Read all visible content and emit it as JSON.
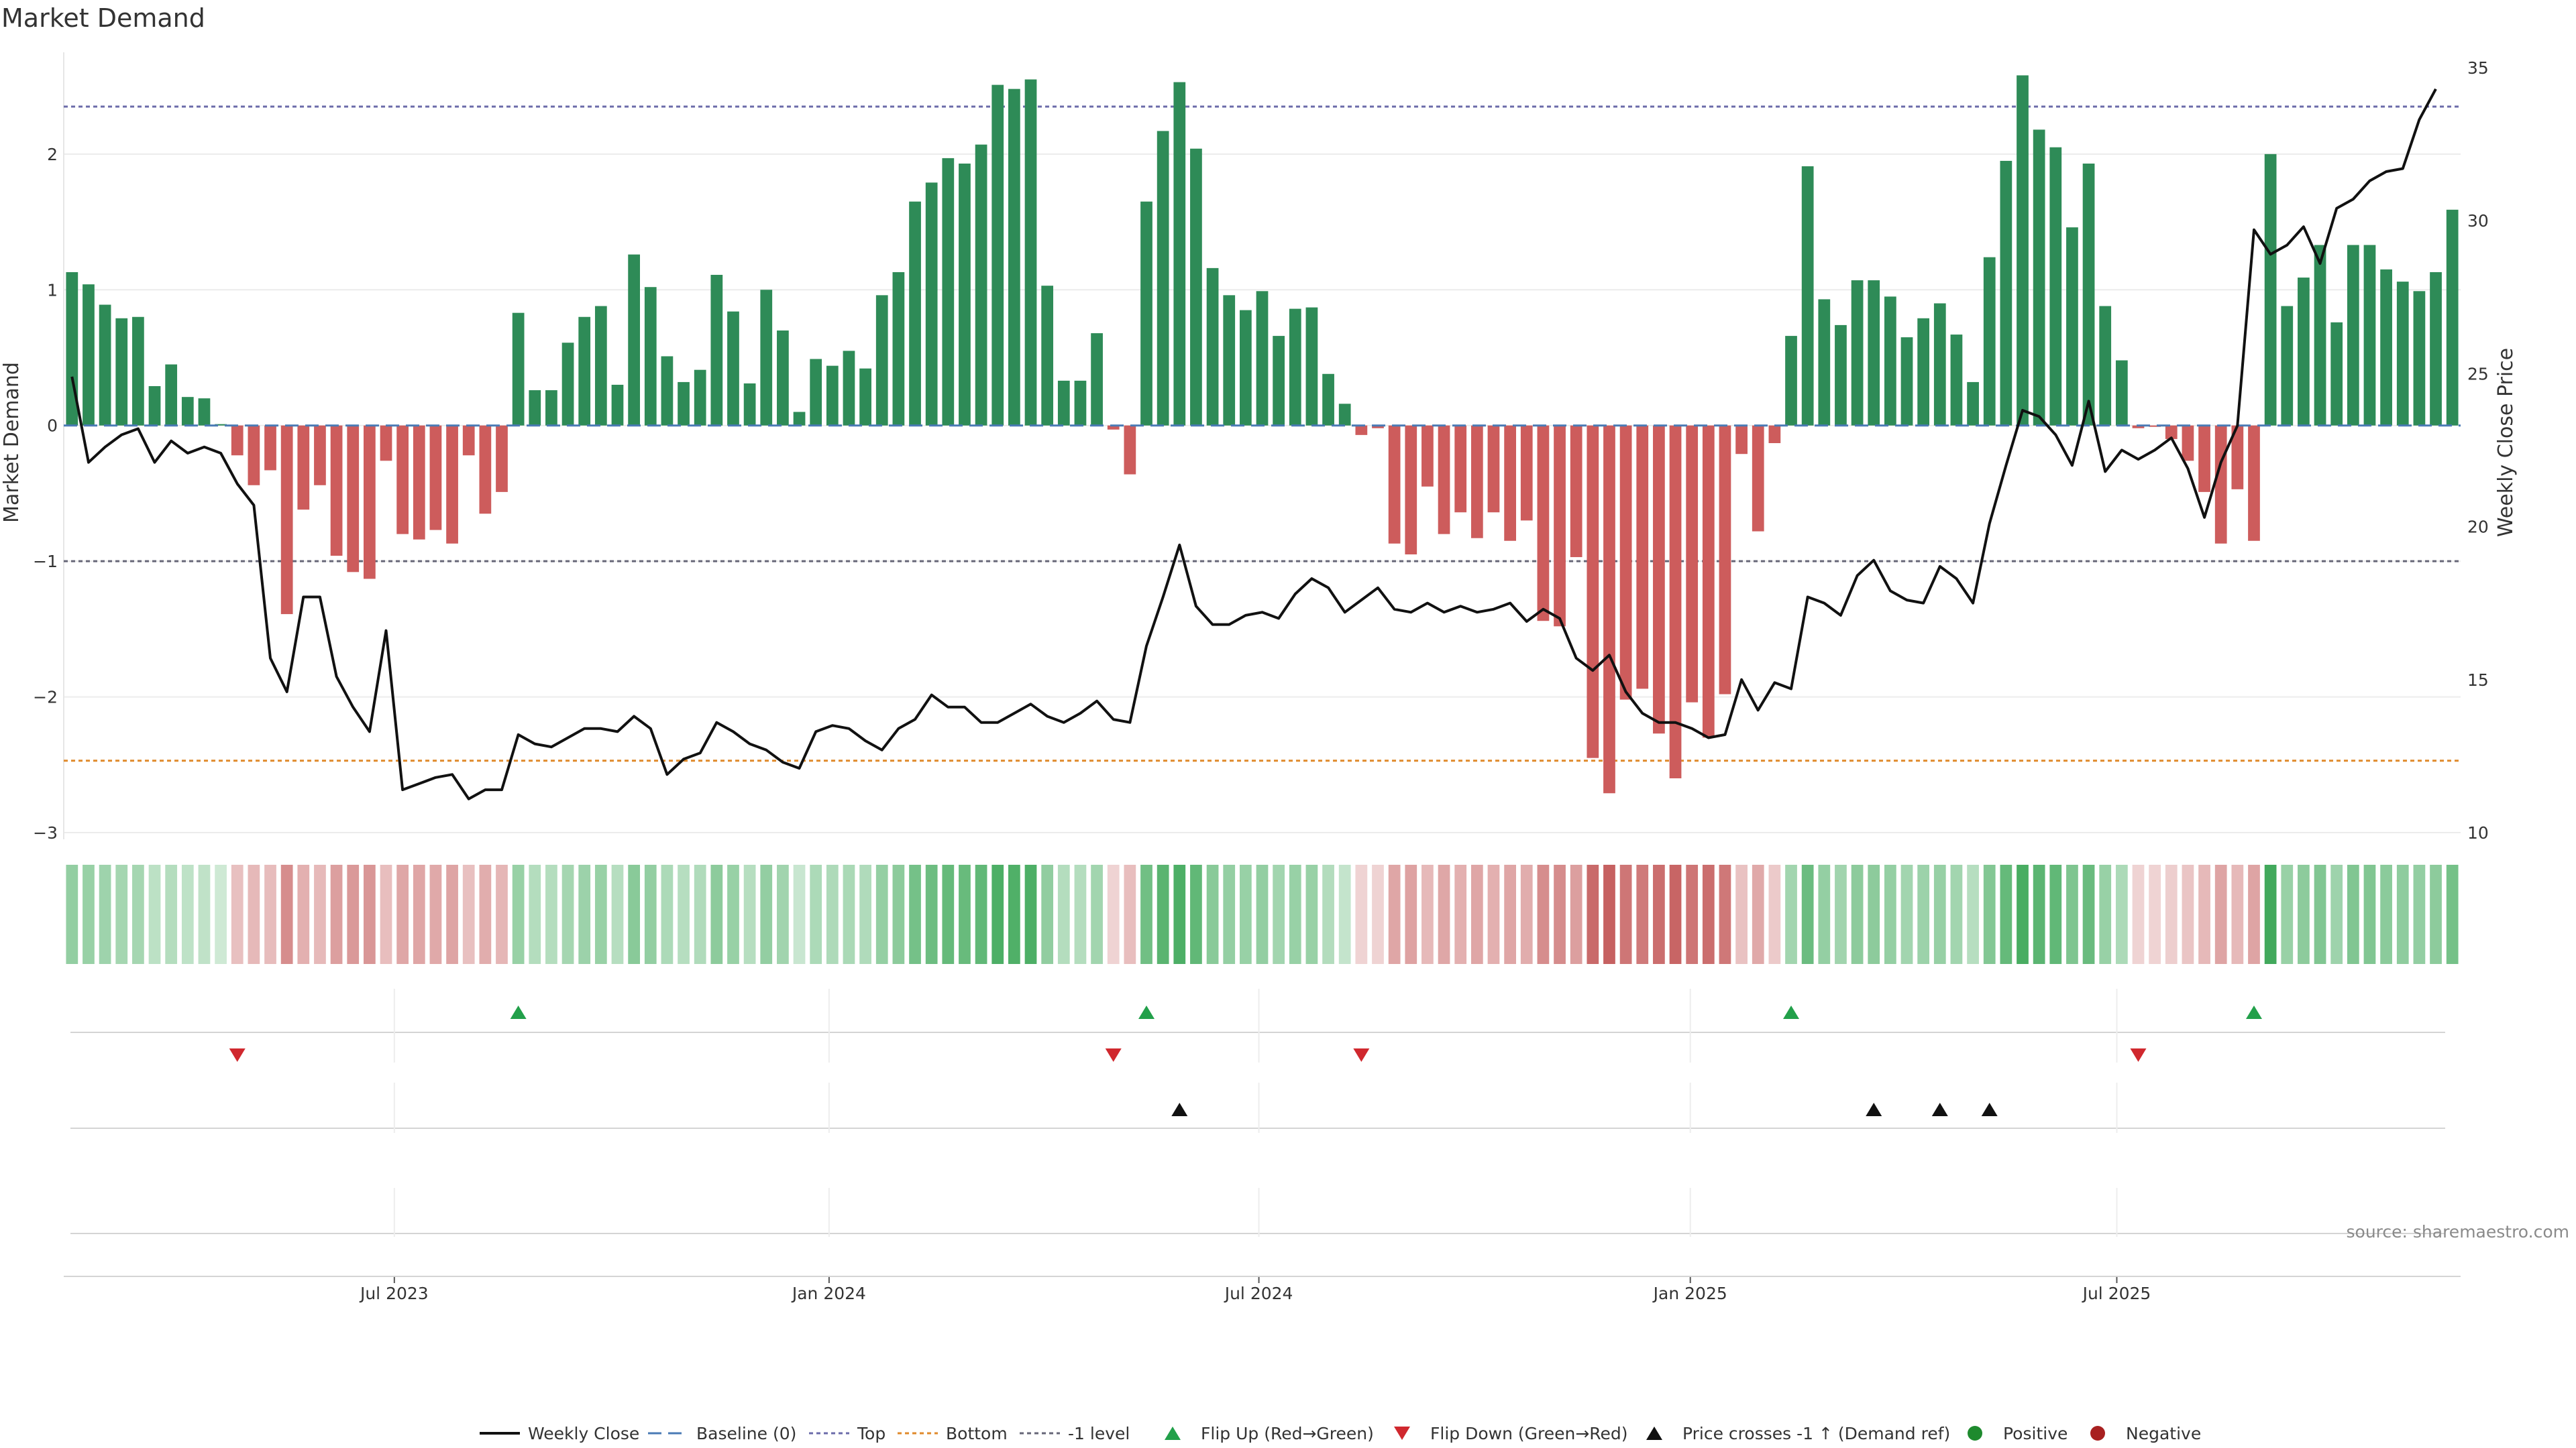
{
  "chart_data": {
    "type": "bar+line",
    "title": "Market Demand",
    "ylabel": "Market Demand",
    "y2label": "Weekly Close Price",
    "ylim": [
      -3,
      2.75
    ],
    "y2lim": [
      10,
      35.5
    ],
    "yticks": [
      2,
      1,
      0,
      -1,
      -2,
      -3
    ],
    "ytick_labels": [
      "2",
      "1",
      "0",
      "−1",
      "−2",
      "−3"
    ],
    "y2ticks": [
      35,
      30,
      25,
      20,
      15,
      10
    ],
    "y2tick_labels": [
      "35",
      "30",
      "25",
      "20",
      "15",
      "10"
    ],
    "x_ticks": [
      {
        "label": "Jul 2023",
        "index": 20
      },
      {
        "label": "Jan 2024",
        "index": 46.3
      },
      {
        "label": "Jul 2024",
        "index": 72.3
      },
      {
        "label": "Jan 2025",
        "index": 98.4
      },
      {
        "label": "Jul 2025",
        "index": 124.2
      }
    ],
    "reference_lines": {
      "top": 2.35,
      "bottom": -2.47,
      "minus_one": -1,
      "baseline": 0
    },
    "demand": [
      1.13,
      1.04,
      0.89,
      0.79,
      0.8,
      0.29,
      0.45,
      0.21,
      0.2,
      0.01,
      -0.22,
      -0.44,
      -0.33,
      -1.39,
      -0.62,
      -0.44,
      -0.96,
      -1.08,
      -1.13,
      -0.26,
      -0.8,
      -0.84,
      -0.77,
      -0.87,
      -0.22,
      -0.65,
      -0.49,
      0.83,
      0.26,
      0.26,
      0.61,
      0.8,
      0.88,
      0.3,
      1.26,
      1.02,
      0.51,
      0.32,
      0.41,
      1.11,
      0.84,
      0.31,
      1.0,
      0.7,
      0.1,
      0.49,
      0.44,
      0.55,
      0.42,
      0.96,
      1.13,
      1.65,
      1.79,
      1.97,
      1.93,
      2.07,
      2.51,
      2.48,
      2.55,
      1.03,
      0.33,
      0.33,
      0.68,
      -0.03,
      -0.36,
      1.65,
      2.17,
      2.53,
      2.04,
      1.16,
      0.96,
      0.85,
      0.99,
      0.66,
      0.86,
      0.87,
      0.38,
      0.16,
      -0.07,
      -0.02,
      -0.87,
      -0.95,
      -0.45,
      -0.8,
      -0.64,
      -0.83,
      -0.64,
      -0.85,
      -0.7,
      -1.44,
      -1.48,
      -0.97,
      -2.45,
      -2.71,
      -2.02,
      -1.94,
      -2.27,
      -2.6,
      -2.04,
      -2.3,
      -1.98,
      -0.21,
      -0.78,
      -0.13,
      0.66,
      1.91,
      0.93,
      0.74,
      1.07,
      1.07,
      0.95,
      0.65,
      0.79,
      0.9,
      0.67,
      0.32,
      1.24,
      1.95,
      2.58,
      2.18,
      2.05,
      1.46,
      1.93,
      0.88,
      0.48,
      -0.02,
      -0.01,
      -0.1,
      -0.26,
      -0.49,
      -0.87,
      -0.47,
      -0.85,
      2.0,
      0.88,
      1.09,
      1.33,
      0.76,
      1.33,
      1.33,
      1.15,
      1.06,
      0.99,
      1.13,
      1.59
    ],
    "price": [
      24.9,
      22.1,
      22.6,
      23.0,
      23.2,
      22.1,
      22.8,
      22.4,
      22.6,
      22.4,
      21.4,
      20.7,
      15.7,
      14.6,
      17.7,
      17.7,
      15.1,
      14.1,
      13.3,
      16.6,
      11.4,
      11.6,
      11.8,
      11.9,
      11.1,
      11.4,
      11.4,
      13.2,
      12.9,
      12.8,
      13.1,
      13.4,
      13.4,
      13.3,
      13.8,
      13.4,
      11.9,
      12.4,
      12.6,
      13.6,
      13.3,
      12.9,
      12.7,
      12.3,
      12.1,
      13.3,
      13.5,
      13.4,
      13.0,
      12.7,
      13.4,
      13.7,
      14.5,
      14.1,
      14.1,
      13.6,
      13.6,
      13.9,
      14.2,
      13.8,
      13.6,
      13.9,
      14.3,
      13.7,
      13.6,
      16.1,
      17.7,
      19.4,
      17.4,
      16.8,
      16.8,
      17.1,
      17.2,
      17.0,
      17.8,
      18.3,
      18.0,
      17.2,
      17.6,
      18.0,
      17.3,
      17.2,
      17.5,
      17.2,
      17.4,
      17.2,
      17.3,
      17.5,
      16.9,
      17.3,
      17.0,
      15.7,
      15.3,
      15.8,
      14.6,
      13.9,
      13.6,
      13.6,
      13.4,
      13.1,
      13.2,
      15.0,
      14.0,
      14.9,
      14.7,
      17.7,
      17.5,
      17.1,
      18.4,
      18.9,
      17.9,
      17.6,
      17.5,
      18.7,
      18.3,
      17.5,
      20.1,
      22.0,
      23.8,
      23.6,
      23.0,
      22.0,
      24.1,
      21.8,
      22.5,
      22.2,
      22.5,
      22.9,
      21.9,
      20.3,
      22.1,
      23.3,
      29.7,
      28.9,
      29.2,
      29.8,
      28.6,
      30.4,
      30.7,
      31.3,
      31.6,
      31.7,
      33.3,
      34.3
    ],
    "heat_opacity": [
      0.55,
      0.52,
      0.49,
      0.46,
      0.46,
      0.34,
      0.38,
      0.33,
      0.32,
      0.25,
      0.36,
      0.4,
      0.38,
      0.65,
      0.45,
      0.4,
      0.55,
      0.58,
      0.6,
      0.37,
      0.5,
      0.51,
      0.49,
      0.52,
      0.36,
      0.47,
      0.42,
      0.52,
      0.38,
      0.38,
      0.46,
      0.5,
      0.52,
      0.37,
      0.6,
      0.55,
      0.42,
      0.37,
      0.4,
      0.58,
      0.52,
      0.37,
      0.55,
      0.48,
      0.28,
      0.42,
      0.41,
      0.43,
      0.4,
      0.54,
      0.58,
      0.7,
      0.74,
      0.78,
      0.77,
      0.8,
      0.9,
      0.89,
      0.9,
      0.56,
      0.38,
      0.38,
      0.47,
      0.25,
      0.37,
      0.72,
      0.84,
      0.9,
      0.8,
      0.6,
      0.54,
      0.52,
      0.55,
      0.47,
      0.52,
      0.52,
      0.39,
      0.3,
      0.25,
      0.25,
      0.51,
      0.53,
      0.4,
      0.5,
      0.45,
      0.51,
      0.45,
      0.51,
      0.47,
      0.65,
      0.66,
      0.55,
      0.85,
      0.9,
      0.78,
      0.76,
      0.83,
      0.88,
      0.78,
      0.83,
      0.77,
      0.35,
      0.49,
      0.3,
      0.47,
      0.75,
      0.54,
      0.48,
      0.58,
      0.58,
      0.54,
      0.47,
      0.5,
      0.53,
      0.47,
      0.37,
      0.63,
      0.78,
      0.92,
      0.83,
      0.8,
      0.65,
      0.76,
      0.52,
      0.42,
      0.25,
      0.25,
      0.28,
      0.33,
      0.4,
      0.52,
      0.4,
      0.52,
      0.96,
      0.52,
      0.58,
      0.64,
      0.49,
      0.64,
      0.64,
      0.59,
      0.57,
      0.55,
      0.58,
      0.7
    ],
    "flip_up": [
      27,
      65,
      104,
      132
    ],
    "flip_down": [
      10,
      63,
      78,
      125
    ],
    "price_cross_up": [
      67,
      109,
      113,
      116
    ],
    "positive_markers": [],
    "negative_markers": []
  },
  "legend": [
    {
      "label": "Weekly Close",
      "kind": "line",
      "color": "#111111"
    },
    {
      "label": "Baseline (0)",
      "kind": "dash",
      "color": "#4a7ab5"
    },
    {
      "label": "Top",
      "kind": "dot",
      "color": "#6b6baa"
    },
    {
      "label": "Bottom",
      "kind": "dot",
      "color": "#e08a2b"
    },
    {
      "label": "-1 level",
      "kind": "dot",
      "color": "#666677"
    },
    {
      "label": "Flip Up (Red→Green)",
      "kind": "tri-up",
      "color": "#22a04a"
    },
    {
      "label": "Flip Down (Green→Red)",
      "kind": "tri-down",
      "color": "#d0282e"
    },
    {
      "label": "Price crosses -1 ↑ (Demand ref)",
      "kind": "tri-up",
      "color": "#111111"
    },
    {
      "label": "Positive",
      "kind": "dot-marker",
      "color": "#1e8a2e"
    },
    {
      "label": "Negative",
      "kind": "dot-marker",
      "color": "#a82020"
    }
  ],
  "source": "source: sharemaestro.com",
  "colors": {
    "positive_bar": "#2e8b57",
    "negative_bar": "#cd5c5c",
    "heat_green": "#3aa655",
    "heat_red": "#c05050",
    "line": "#111111",
    "top_line": "#6b6baa",
    "bottom_line": "#e08a2b",
    "minus_one_line": "#666677",
    "baseline": "#4a7ab5"
  }
}
